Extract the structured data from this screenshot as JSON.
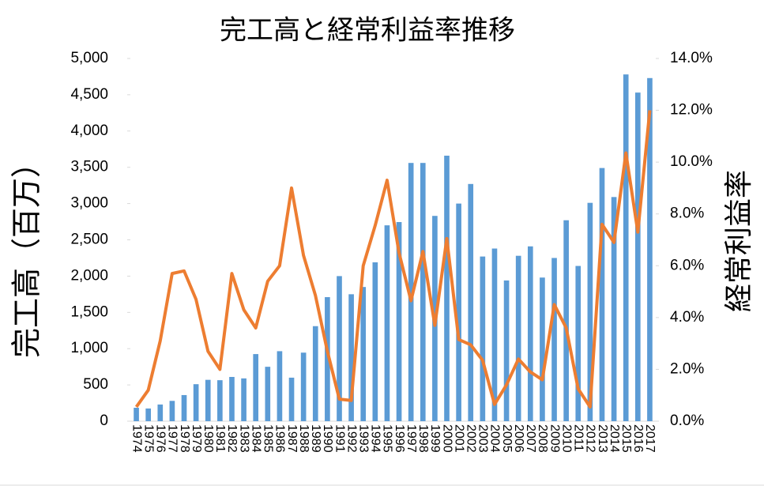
{
  "chart_data": {
    "type": "combo",
    "title": "完工高と経常利益率推移",
    "y_label": "完工高（百万）",
    "y2_label": "経常利益率",
    "categories": [
      "1974",
      "1975",
      "1976",
      "1977",
      "1978",
      "1979",
      "1980",
      "1981",
      "1982",
      "1983",
      "1984",
      "1985",
      "1986",
      "1987",
      "1988",
      "1989",
      "1990",
      "1991",
      "1992",
      "1993",
      "1994",
      "1995",
      "1996",
      "1997",
      "1998",
      "1999",
      "2000",
      "2001",
      "2002",
      "2003",
      "2004",
      "2005",
      "2006",
      "2007",
      "2008",
      "2009",
      "2010",
      "2011",
      "2012",
      "2013",
      "2014",
      "2015",
      "2016",
      "2017"
    ],
    "series": [
      {
        "type": "bar",
        "color": "#5b9bd5",
        "axis": "y",
        "values": [
          185,
          175,
          230,
          280,
          360,
          510,
          570,
          565,
          610,
          590,
          925,
          750,
          965,
          600,
          945,
          1310,
          1710,
          2000,
          1750,
          1850,
          2190,
          2700,
          2745,
          3560,
          3560,
          2830,
          3660,
          3000,
          3270,
          2270,
          2380,
          1940,
          2280,
          2410,
          1980,
          2250,
          2770,
          2140,
          3010,
          3490,
          3090,
          4780,
          4530,
          4730
        ]
      },
      {
        "type": "line",
        "color": "#ed7d31",
        "axis": "y2",
        "values": [
          0.55,
          1.2,
          3.1,
          5.7,
          5.8,
          4.7,
          2.7,
          2.0,
          5.7,
          4.3,
          3.6,
          5.4,
          6.0,
          9.0,
          6.4,
          4.85,
          2.7,
          0.85,
          0.8,
          6.0,
          7.55,
          9.3,
          6.5,
          4.65,
          6.55,
          3.7,
          7.05,
          3.15,
          2.95,
          2.35,
          0.65,
          1.4,
          2.4,
          1.9,
          1.6,
          4.5,
          3.6,
          1.25,
          0.55,
          7.6,
          6.9,
          10.35,
          7.3,
          12.0
        ]
      }
    ],
    "ylim": [
      0,
      5000
    ],
    "yticks": [
      0,
      500,
      {
        "value": 1000,
        "label": "1,000"
      },
      {
        "value": 1500,
        "label": "1,500"
      },
      {
        "value": 2000,
        "label": "2,000"
      },
      {
        "value": 2500,
        "label": "2,500"
      },
      {
        "value": 3000,
        "label": "3,000"
      },
      {
        "value": 3500,
        "label": "3,500"
      },
      {
        "value": 4000,
        "label": "4,000"
      },
      {
        "value": 4500,
        "label": "4,500"
      },
      {
        "value": 5000,
        "label": "5,000"
      }
    ],
    "y2lim": [
      0,
      14
    ],
    "y2ticks": [
      {
        "value": 0,
        "label": "0.0%"
      },
      {
        "value": 2,
        "label": "2.0%"
      },
      {
        "value": 4,
        "label": "4.0%"
      },
      {
        "value": 6,
        "label": "6.0%"
      },
      {
        "value": 8,
        "label": "8.0%"
      },
      {
        "value": 10,
        "label": "10.0%"
      },
      {
        "value": 12,
        "label": "12.0%"
      },
      {
        "value": 14,
        "label": "14.0%"
      }
    ]
  }
}
